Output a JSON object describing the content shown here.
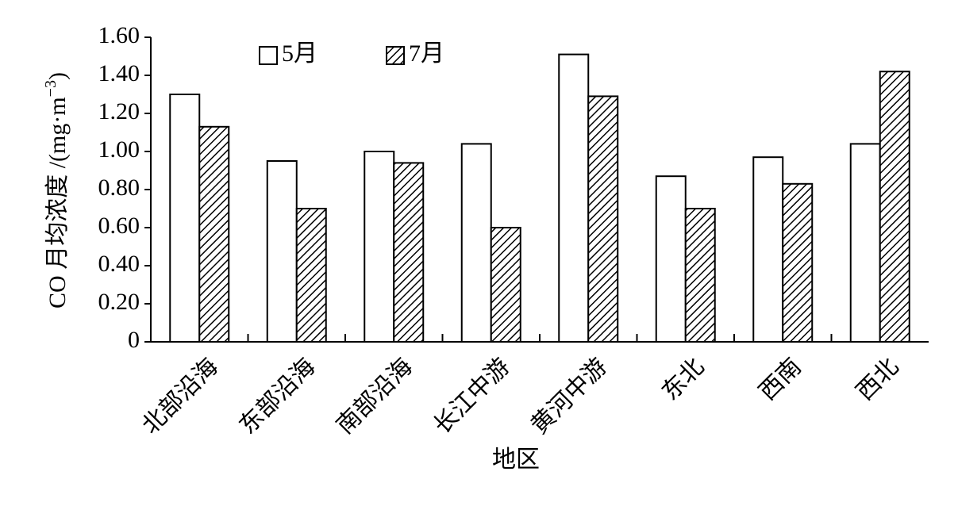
{
  "chart_data": {
    "type": "bar",
    "y_label": "CO 月均浓度 /(mg·m",
    "y_label_sup": "−3",
    "y_label_end": ")",
    "x_label": "地区",
    "categories": [
      "北部沿海",
      "东部沿海",
      "南部沿海",
      "长江中游",
      "黄河中游",
      "东北",
      "西南",
      "西北"
    ],
    "series": [
      {
        "name": "5月",
        "color": "#ffffff",
        "hatch": false,
        "values": [
          1.3,
          0.95,
          1.0,
          1.04,
          1.51,
          0.87,
          0.97,
          1.04
        ]
      },
      {
        "name": "7月",
        "color": "#ffffff",
        "hatch": true,
        "values": [
          1.13,
          0.7,
          0.94,
          0.6,
          1.29,
          0.7,
          0.83,
          1.42
        ]
      }
    ],
    "ylim": [
      0,
      1.6
    ],
    "yticks": [
      0,
      {
        "value": 0.2,
        "label": "0.20"
      },
      {
        "value": 0.4,
        "label": "0.40"
      },
      {
        "value": 0.6,
        "label": "0.60"
      },
      {
        "value": 0.8,
        "label": "0.80"
      },
      {
        "value": 1.0,
        "label": "1.00"
      },
      {
        "value": 1.2,
        "label": "1.20"
      },
      {
        "value": 1.4,
        "label": "1.40"
      },
      {
        "value": 1.6,
        "label": "1.60"
      }
    ],
    "grid": false,
    "legend": "top-left"
  }
}
